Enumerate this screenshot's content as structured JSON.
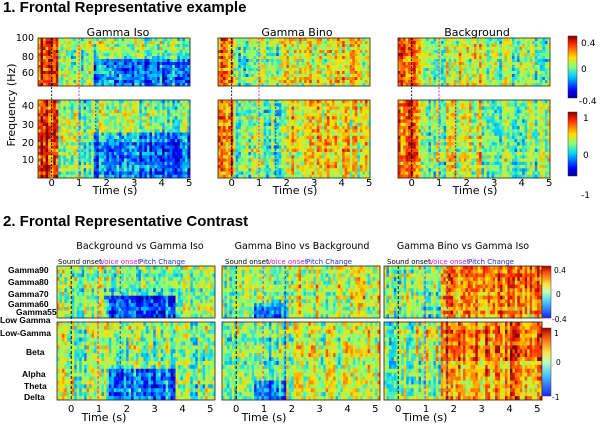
{
  "section1": {
    "title": "1. Frontal Representative example",
    "panels": [
      "Gamma Iso",
      "Gamma Bino",
      "Background"
    ],
    "ylabel": "Frequency (Hz)",
    "xlabel": "Time (s)",
    "y_ticks_high": [
      "100",
      "80",
      "60"
    ],
    "y_ticks_low": [
      "40",
      "30",
      "20",
      "10"
    ],
    "x_ticks": [
      "0",
      "1",
      "2",
      "3",
      "4",
      "5"
    ],
    "colorbar_high": [
      "0.4",
      "0",
      "-0.4"
    ],
    "colorbar_low": [
      "1",
      "0",
      "-1"
    ]
  },
  "section2": {
    "title": "2. Frontal Representative Contrast",
    "panels": [
      "Background vs Gamma Iso",
      "Gamma Bino vs Background",
      "Gamma Bino vs Gamma Iso"
    ],
    "events": {
      "sound": "Sound onset",
      "voice": "Voice onset",
      "pitch": "Pitch Change"
    },
    "bands_high": [
      "Gamma90",
      "Gamma80",
      "Gamma70",
      "Gamma60",
      "Gamma55",
      "Low Gamma"
    ],
    "bands_low": [
      "Low-Gamma",
      "Beta",
      "Alpha",
      "Theta",
      "Delta"
    ],
    "xlabel": "Time (s)",
    "x_ticks": [
      "0",
      "1",
      "2",
      "3",
      "4",
      "5"
    ],
    "colorbar_high": [
      "0.4",
      "0",
      "-0.4"
    ],
    "colorbar_low": [
      "1",
      "0",
      "-1"
    ]
  },
  "colors": {
    "event_sound": "#000000",
    "event_voice": "#d020d0",
    "event_pitch": "#2030c0"
  }
}
